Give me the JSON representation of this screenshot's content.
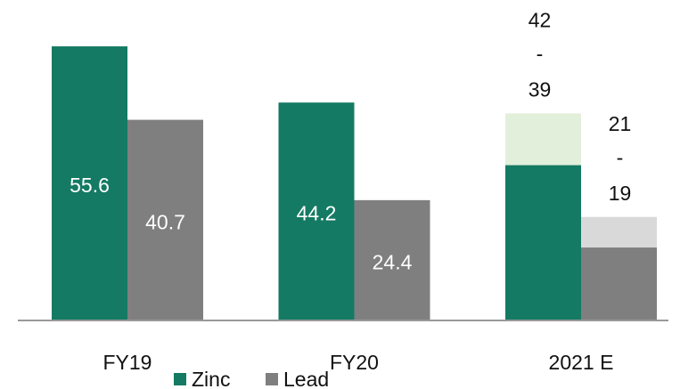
{
  "chart_data": {
    "type": "bar",
    "categories": [
      "FY19",
      "FY20",
      "2021 E"
    ],
    "series": [
      {
        "name": "Zinc",
        "color": "#147a63",
        "values": [
          55.6,
          44.2,
          31.5
        ],
        "value_labels": [
          "55.6",
          "44.2",
          null
        ]
      },
      {
        "name": "Lead",
        "color": "#7f7f7f",
        "values": [
          40.7,
          24.4,
          14.8
        ],
        "value_labels": [
          "40.7",
          "24.4",
          null
        ]
      }
    ],
    "estimates": [
      {
        "series": 0,
        "category": 2,
        "high": 42,
        "separator": "-",
        "low": 39,
        "color": "#e2efda"
      },
      {
        "series": 1,
        "category": 2,
        "high": 21,
        "separator": "-",
        "low": 19,
        "color": "#d9d9d9"
      }
    ],
    "ylim": [
      0,
      65
    ],
    "grid": false,
    "legend": "bottom"
  }
}
